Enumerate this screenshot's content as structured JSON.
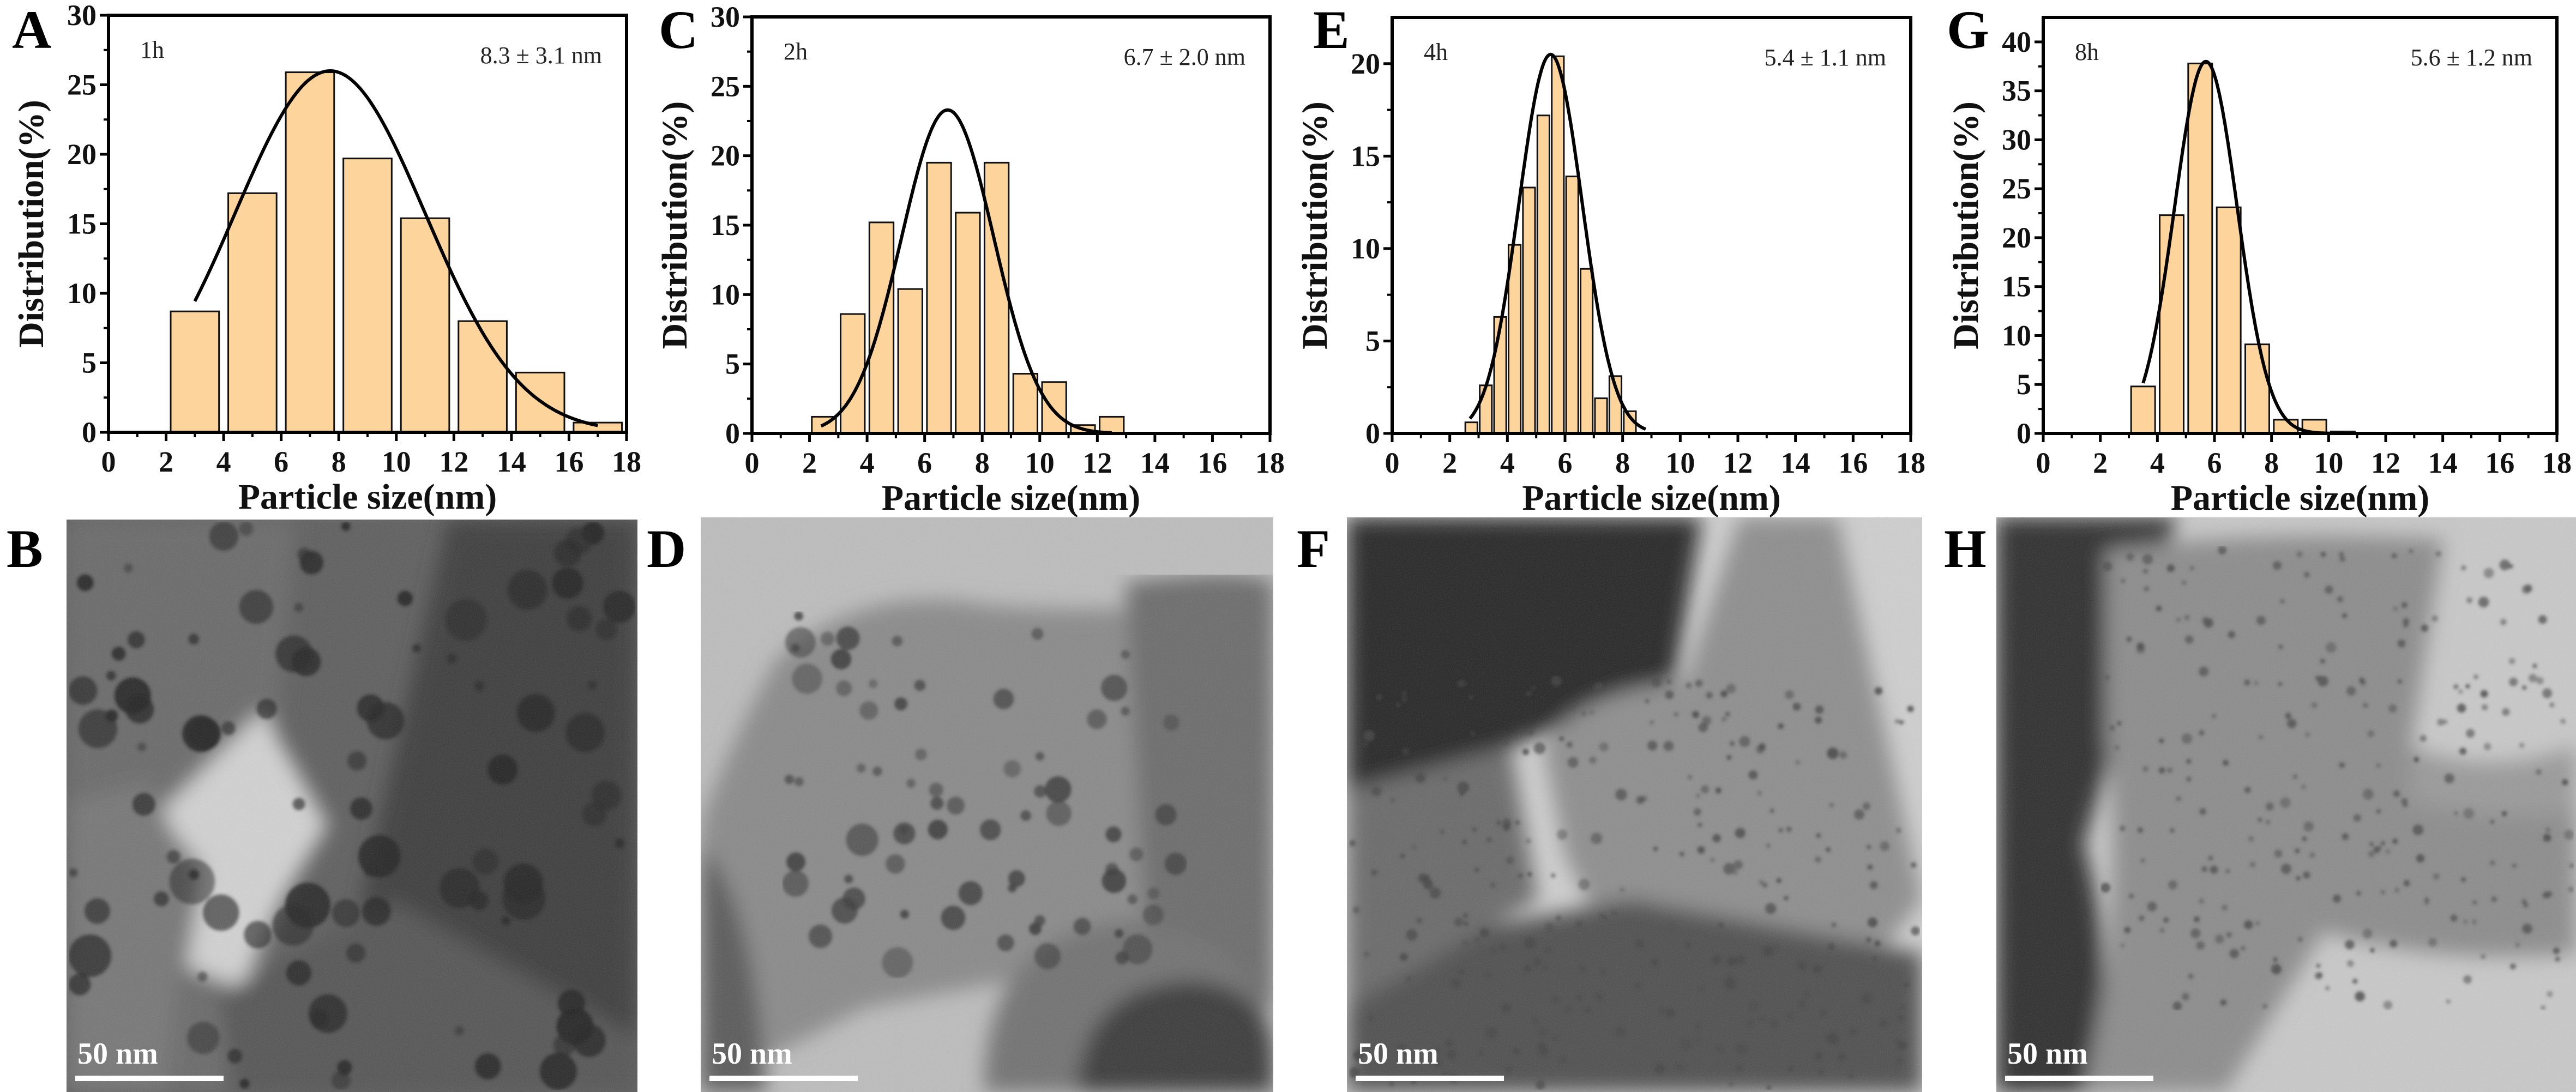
{
  "colors": {
    "bar_fill": "#fdd49c",
    "bar_edge": "#111111",
    "fit_line": "#000000",
    "axis": "#000000"
  },
  "chart_data": [
    {
      "panel": "A",
      "type": "bar",
      "label": "1h",
      "annotation": "8.3 ± 3.1 nm",
      "xlabel": "Particle size(nm)",
      "ylabel": "Distribution(%)",
      "xlim": [
        0,
        18
      ],
      "ylim": [
        0,
        30
      ],
      "xticks": [
        0,
        2,
        4,
        6,
        8,
        10,
        12,
        14,
        16,
        18
      ],
      "yticks": [
        0,
        5,
        10,
        15,
        20,
        25,
        30
      ],
      "grid": false,
      "bins": [
        {
          "start": 2,
          "end": 4,
          "value": 8.7
        },
        {
          "start": 4,
          "end": 6,
          "value": 17.2
        },
        {
          "start": 6,
          "end": 8,
          "value": 25.9
        },
        {
          "start": 8,
          "end": 10,
          "value": 19.7
        },
        {
          "start": 10,
          "end": 12,
          "value": 15.4
        },
        {
          "start": 12,
          "end": 14,
          "value": 8.0
        },
        {
          "start": 14,
          "end": 16,
          "value": 4.3
        },
        {
          "start": 16,
          "end": 18,
          "value": 0.7
        }
      ],
      "fit": {
        "type": "gaussian",
        "center": 7.7,
        "sigma": 3.3,
        "peak": 26,
        "range": [
          3,
          17
        ]
      }
    },
    {
      "panel": "C",
      "type": "bar",
      "label": "2h",
      "annotation": "6.7 ± 2.0 nm",
      "xlabel": "Particle size(nm)",
      "ylabel": "Distribution(%)",
      "xlim": [
        0,
        18
      ],
      "ylim": [
        0,
        30
      ],
      "xticks": [
        0,
        2,
        4,
        6,
        8,
        10,
        12,
        14,
        16,
        18
      ],
      "yticks": [
        0,
        5,
        10,
        15,
        20,
        25,
        30
      ],
      "grid": false,
      "bins": [
        {
          "start": 2,
          "end": 3,
          "value": 1.2
        },
        {
          "start": 3,
          "end": 4,
          "value": 8.6
        },
        {
          "start": 4,
          "end": 5,
          "value": 15.2
        },
        {
          "start": 5,
          "end": 6,
          "value": 10.4
        },
        {
          "start": 6,
          "end": 7,
          "value": 19.5
        },
        {
          "start": 7,
          "end": 8,
          "value": 15.9
        },
        {
          "start": 8,
          "end": 9,
          "value": 19.5
        },
        {
          "start": 9,
          "end": 10,
          "value": 4.3
        },
        {
          "start": 10,
          "end": 11,
          "value": 3.7
        },
        {
          "start": 11,
          "end": 12,
          "value": 0.6
        },
        {
          "start": 12,
          "end": 13,
          "value": 1.2
        }
      ],
      "fit": {
        "type": "gaussian",
        "center": 6.8,
        "sigma": 1.6,
        "peak": 23.3,
        "range": [
          2.4,
          12.5
        ]
      }
    },
    {
      "panel": "E",
      "type": "bar",
      "label": "4h",
      "annotation": "5.4 ± 1.1 nm",
      "xlabel": "Particle size(nm)",
      "ylabel": "Distribution(%)",
      "xlim": [
        0,
        18
      ],
      "ylim": [
        0,
        22.5
      ],
      "xticks": [
        0,
        2,
        4,
        6,
        8,
        10,
        12,
        14,
        16,
        18
      ],
      "yticks": [
        0,
        5,
        10,
        15,
        20
      ],
      "grid": false,
      "bins": [
        {
          "start": 2.5,
          "end": 3.0,
          "value": 0.6
        },
        {
          "start": 3.0,
          "end": 3.5,
          "value": 2.6
        },
        {
          "start": 3.5,
          "end": 4.0,
          "value": 6.3
        },
        {
          "start": 4.0,
          "end": 4.5,
          "value": 10.2
        },
        {
          "start": 4.5,
          "end": 5.0,
          "value": 13.3
        },
        {
          "start": 5.0,
          "end": 5.5,
          "value": 17.2
        },
        {
          "start": 5.5,
          "end": 6.0,
          "value": 20.4
        },
        {
          "start": 6.0,
          "end": 6.5,
          "value": 13.9
        },
        {
          "start": 6.5,
          "end": 7.0,
          "value": 8.9
        },
        {
          "start": 7.0,
          "end": 7.5,
          "value": 1.9
        },
        {
          "start": 7.5,
          "end": 8.0,
          "value": 3.1
        },
        {
          "start": 8.0,
          "end": 8.5,
          "value": 1.2
        }
      ],
      "fit": {
        "type": "gaussian",
        "center": 5.5,
        "sigma": 1.1,
        "peak": 20.5,
        "range": [
          2.7,
          8.8
        ]
      }
    },
    {
      "panel": "G",
      "type": "bar",
      "label": "8h",
      "annotation": "5.6 ± 1.2 nm",
      "xlabel": "Particle size(nm)",
      "ylabel": "Distribution(%)",
      "xlim": [
        0,
        18
      ],
      "ylim": [
        0,
        42.5
      ],
      "xticks": [
        0,
        2,
        4,
        6,
        8,
        10,
        12,
        14,
        16,
        18
      ],
      "yticks": [
        0,
        5,
        10,
        15,
        20,
        25,
        30,
        35,
        40
      ],
      "grid": false,
      "bins": [
        {
          "start": 3,
          "end": 4,
          "value": 4.8
        },
        {
          "start": 4,
          "end": 5,
          "value": 22.3
        },
        {
          "start": 5,
          "end": 6,
          "value": 37.8
        },
        {
          "start": 6,
          "end": 7,
          "value": 23.1
        },
        {
          "start": 7,
          "end": 8,
          "value": 9.1
        },
        {
          "start": 8,
          "end": 9,
          "value": 1.4
        },
        {
          "start": 9,
          "end": 10,
          "value": 1.4
        },
        {
          "start": 10,
          "end": 11,
          "value": 0.2
        }
      ],
      "fit": {
        "type": "gaussian",
        "center": 5.7,
        "sigma": 1.1,
        "peak": 38,
        "range": [
          3.5,
          10.5
        ]
      }
    }
  ],
  "tem_images": [
    {
      "panel": "B",
      "scale_bar": "50 nm",
      "icon": "tem-micrograph"
    },
    {
      "panel": "D",
      "scale_bar": "50 nm",
      "icon": "tem-micrograph"
    },
    {
      "panel": "F",
      "scale_bar": "50 nm",
      "icon": "tem-micrograph"
    },
    {
      "panel": "H",
      "scale_bar": "50 nm",
      "icon": "tem-micrograph"
    }
  ]
}
